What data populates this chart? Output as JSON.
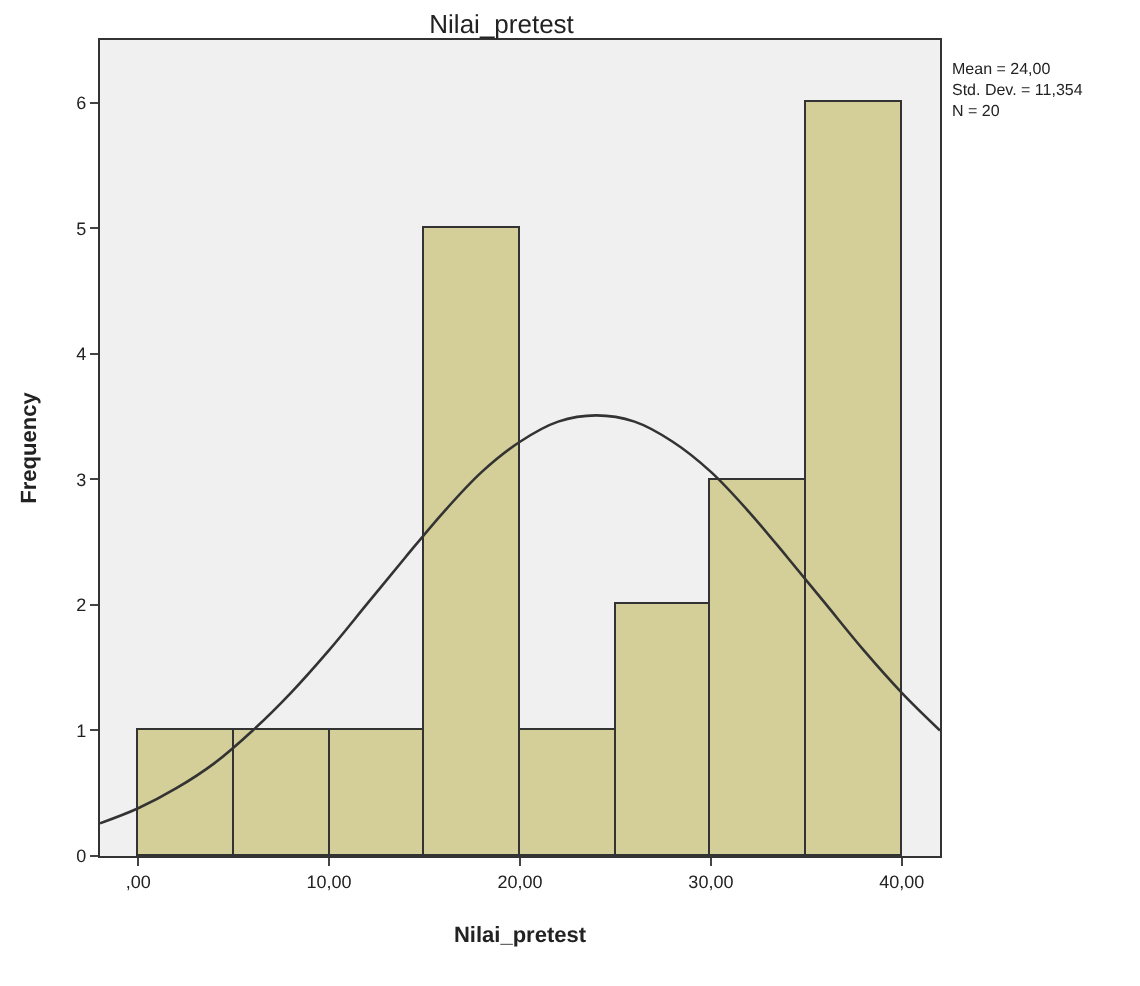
{
  "chart_data": {
    "type": "histogram",
    "title": "Nilai_pretest",
    "xlabel": "Nilai_pretest",
    "ylabel": "Frequency",
    "bins": [
      0,
      5,
      10,
      15,
      20,
      25,
      30,
      35,
      40
    ],
    "values": [
      1,
      1,
      1,
      5,
      1,
      2,
      3,
      6
    ],
    "color": "#d4cf98",
    "series": [
      {
        "type": "line",
        "color": "#333333",
        "x": [
          -2,
          0,
          2,
          4,
          6,
          8,
          10,
          12,
          14,
          16,
          18,
          20,
          22,
          24,
          26,
          28,
          30,
          32,
          34,
          36,
          38,
          40,
          42
        ],
        "values": [
          0.26,
          0.38,
          0.54,
          0.74,
          1.0,
          1.3,
          1.64,
          2.01,
          2.38,
          2.74,
          3.06,
          3.3,
          3.46,
          3.51,
          3.46,
          3.3,
          3.06,
          2.74,
          2.38,
          2.01,
          1.64,
          1.3,
          1.0
        ]
      }
    ],
    "xlim": [
      -2,
      42
    ],
    "xticks": [
      {
        "value": 0,
        "label": ",00"
      },
      {
        "value": 10,
        "label": "10,00"
      },
      {
        "value": 20,
        "label": "20,00"
      },
      {
        "value": 30,
        "label": "30,00"
      },
      {
        "value": 40,
        "label": "40,00"
      }
    ],
    "ylim": [
      0,
      6.5
    ],
    "yticks": [
      0,
      1,
      2,
      3,
      4,
      5,
      6
    ],
    "grid": false,
    "annotations": [
      "Mean = 24,00\nStd. Dev. = 11,354\nN = 20"
    ]
  }
}
